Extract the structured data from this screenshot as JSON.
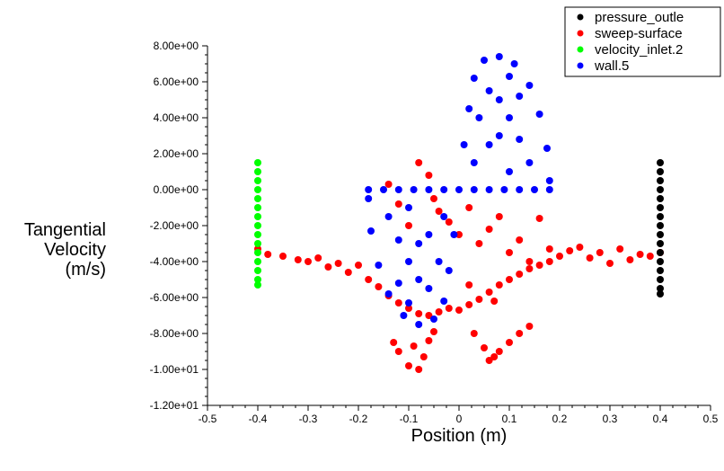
{
  "chart_data": {
    "type": "scatter",
    "title": "",
    "xlabel": "Position (m)",
    "ylabel_lines": [
      "Tangential",
      "Velocity",
      "(m/s)"
    ],
    "xlim": [
      -0.5,
      0.5
    ],
    "ylim": [
      -12,
      8
    ],
    "x_ticks": [
      -0.5,
      -0.4,
      -0.3,
      -0.2,
      -0.1,
      0,
      0.1,
      0.2,
      0.3,
      0.4,
      0.5
    ],
    "x_tick_labels": [
      "-0.5",
      "-0.4",
      "-0.3",
      "-0.2",
      "-0.1",
      "0",
      "0.1",
      "0.2",
      "0.3",
      "0.4",
      "0.5"
    ],
    "y_ticks": [
      8,
      6,
      4,
      2,
      0,
      -2,
      -4,
      -6,
      -8,
      -10,
      -12
    ],
    "y_tick_labels": [
      "8.00e+00",
      "6.00e+00",
      "4.00e+00",
      "2.00e+00",
      "0.00e+00",
      "-2.00e+00",
      "-4.00e+00",
      "-6.00e+00",
      "-8.00e+00",
      "-1.00e+01",
      "-1.20e+01"
    ],
    "grid": false,
    "legend_position": "top-right",
    "series": [
      {
        "name": "pressure_outle",
        "color": "#000000",
        "points": [
          [
            0.4,
            1.5
          ],
          [
            0.4,
            1.0
          ],
          [
            0.4,
            0.5
          ],
          [
            0.4,
            0.0
          ],
          [
            0.4,
            -0.5
          ],
          [
            0.4,
            -1.0
          ],
          [
            0.4,
            -1.5
          ],
          [
            0.4,
            -2.0
          ],
          [
            0.4,
            -2.5
          ],
          [
            0.4,
            -3.0
          ],
          [
            0.4,
            -3.5
          ],
          [
            0.4,
            -4.0
          ],
          [
            0.4,
            -4.5
          ],
          [
            0.4,
            -5.0
          ],
          [
            0.4,
            -5.5
          ],
          [
            0.4,
            -5.8
          ]
        ]
      },
      {
        "name": "sweep-surface",
        "color": "#ff0000",
        "points": [
          [
            -0.4,
            -3.3
          ],
          [
            -0.38,
            -3.6
          ],
          [
            -0.35,
            -3.7
          ],
          [
            -0.32,
            -3.9
          ],
          [
            -0.3,
            -4.0
          ],
          [
            -0.28,
            -3.8
          ],
          [
            -0.26,
            -4.3
          ],
          [
            -0.24,
            -4.1
          ],
          [
            -0.22,
            -4.6
          ],
          [
            -0.2,
            -4.2
          ],
          [
            -0.18,
            -5.0
          ],
          [
            -0.16,
            -5.4
          ],
          [
            -0.14,
            -5.9
          ],
          [
            -0.12,
            -6.3
          ],
          [
            -0.1,
            -6.6
          ],
          [
            -0.08,
            -6.9
          ],
          [
            -0.06,
            -7.0
          ],
          [
            -0.04,
            -6.8
          ],
          [
            -0.02,
            -6.6
          ],
          [
            0.0,
            -6.7
          ],
          [
            0.02,
            -6.4
          ],
          [
            0.04,
            -6.1
          ],
          [
            0.06,
            -5.7
          ],
          [
            0.08,
            -5.3
          ],
          [
            0.1,
            -5.0
          ],
          [
            0.12,
            -4.7
          ],
          [
            0.14,
            -4.4
          ],
          [
            0.16,
            -4.2
          ],
          [
            0.18,
            -4.0
          ],
          [
            0.2,
            -3.7
          ],
          [
            0.22,
            -3.4
          ],
          [
            0.24,
            -3.2
          ],
          [
            0.26,
            -3.8
          ],
          [
            0.28,
            -3.5
          ],
          [
            0.3,
            -4.1
          ],
          [
            0.32,
            -3.3
          ],
          [
            0.34,
            -3.9
          ],
          [
            0.36,
            -3.6
          ],
          [
            0.38,
            -3.7
          ],
          [
            0.4,
            -3.5
          ],
          [
            -0.13,
            -8.5
          ],
          [
            -0.12,
            -9.0
          ],
          [
            -0.1,
            -9.8
          ],
          [
            -0.08,
            -10.0
          ],
          [
            -0.07,
            -9.3
          ],
          [
            -0.06,
            -8.4
          ],
          [
            -0.05,
            -7.9
          ],
          [
            -0.09,
            -8.7
          ],
          [
            0.03,
            -8.0
          ],
          [
            0.05,
            -8.8
          ],
          [
            0.06,
            -9.5
          ],
          [
            0.07,
            -9.3
          ],
          [
            0.08,
            -9.0
          ],
          [
            0.1,
            -8.5
          ],
          [
            0.12,
            -8.0
          ],
          [
            0.14,
            -7.6
          ],
          [
            -0.08,
            1.5
          ],
          [
            -0.06,
            0.8
          ],
          [
            -0.05,
            -0.5
          ],
          [
            -0.04,
            -1.2
          ],
          [
            -0.02,
            -1.8
          ],
          [
            0.0,
            -2.5
          ],
          [
            0.02,
            -1.0
          ],
          [
            0.04,
            -3.0
          ],
          [
            0.06,
            -2.2
          ],
          [
            0.08,
            -1.5
          ],
          [
            0.1,
            -3.5
          ],
          [
            0.12,
            -2.8
          ],
          [
            0.14,
            -4.0
          ],
          [
            0.16,
            -1.6
          ],
          [
            0.18,
            -3.3
          ],
          [
            -0.12,
            -0.8
          ],
          [
            -0.14,
            0.3
          ],
          [
            -0.1,
            -2.0
          ],
          [
            0.02,
            -5.3
          ],
          [
            0.07,
            -6.2
          ]
        ]
      },
      {
        "name": "velocity_inlet.2",
        "color": "#00ff00",
        "points": [
          [
            -0.4,
            1.5
          ],
          [
            -0.4,
            1.0
          ],
          [
            -0.4,
            0.5
          ],
          [
            -0.4,
            0.0
          ],
          [
            -0.4,
            -0.5
          ],
          [
            -0.4,
            -1.0
          ],
          [
            -0.4,
            -1.5
          ],
          [
            -0.4,
            -2.0
          ],
          [
            -0.4,
            -2.5
          ],
          [
            -0.4,
            -3.0
          ],
          [
            -0.4,
            -3.5
          ],
          [
            -0.4,
            -4.0
          ],
          [
            -0.4,
            -4.5
          ],
          [
            -0.4,
            -5.0
          ],
          [
            -0.4,
            -5.3
          ]
        ]
      },
      {
        "name": "wall.5",
        "color": "#0000ff",
        "points": [
          [
            -0.18,
            0.0
          ],
          [
            -0.15,
            0.0
          ],
          [
            -0.12,
            0.0
          ],
          [
            -0.09,
            0.0
          ],
          [
            -0.06,
            0.0
          ],
          [
            -0.03,
            0.0
          ],
          [
            0.03,
            0.0
          ],
          [
            0.06,
            0.0
          ],
          [
            0.09,
            0.0
          ],
          [
            0.12,
            0.0
          ],
          [
            0.15,
            0.0
          ],
          [
            0.18,
            0.0
          ],
          [
            -0.18,
            -0.5
          ],
          [
            -0.175,
            -2.3
          ],
          [
            -0.16,
            -4.2
          ],
          [
            -0.14,
            -5.8
          ],
          [
            -0.11,
            -7.0
          ],
          [
            -0.08,
            -7.5
          ],
          [
            -0.05,
            -7.2
          ],
          [
            -0.03,
            -6.2
          ],
          [
            -0.02,
            -4.5
          ],
          [
            -0.01,
            -2.5
          ],
          [
            0.0,
            0.0
          ],
          [
            0.01,
            2.5
          ],
          [
            0.02,
            4.5
          ],
          [
            0.03,
            6.2
          ],
          [
            0.05,
            7.2
          ],
          [
            0.08,
            7.4
          ],
          [
            0.11,
            7.0
          ],
          [
            0.14,
            5.8
          ],
          [
            0.16,
            4.2
          ],
          [
            0.175,
            2.3
          ],
          [
            0.18,
            0.5
          ],
          [
            -0.14,
            -1.5
          ],
          [
            -0.12,
            -2.8
          ],
          [
            -0.1,
            -4.0
          ],
          [
            -0.08,
            -5.0
          ],
          [
            -0.06,
            -5.5
          ],
          [
            -0.04,
            -4.0
          ],
          [
            -0.1,
            -1.0
          ],
          [
            -0.06,
            -2.5
          ],
          [
            -0.03,
            -1.5
          ],
          [
            0.03,
            1.5
          ],
          [
            0.06,
            2.5
          ],
          [
            0.1,
            1.0
          ],
          [
            0.04,
            4.0
          ],
          [
            0.06,
            5.5
          ],
          [
            0.08,
            5.0
          ],
          [
            0.1,
            4.0
          ],
          [
            0.12,
            2.8
          ],
          [
            0.14,
            1.5
          ],
          [
            0.08,
            3.0
          ],
          [
            0.12,
            5.2
          ],
          [
            0.1,
            6.3
          ],
          [
            -0.1,
            -6.3
          ],
          [
            -0.12,
            -5.2
          ],
          [
            -0.08,
            -3.0
          ]
        ]
      }
    ]
  }
}
